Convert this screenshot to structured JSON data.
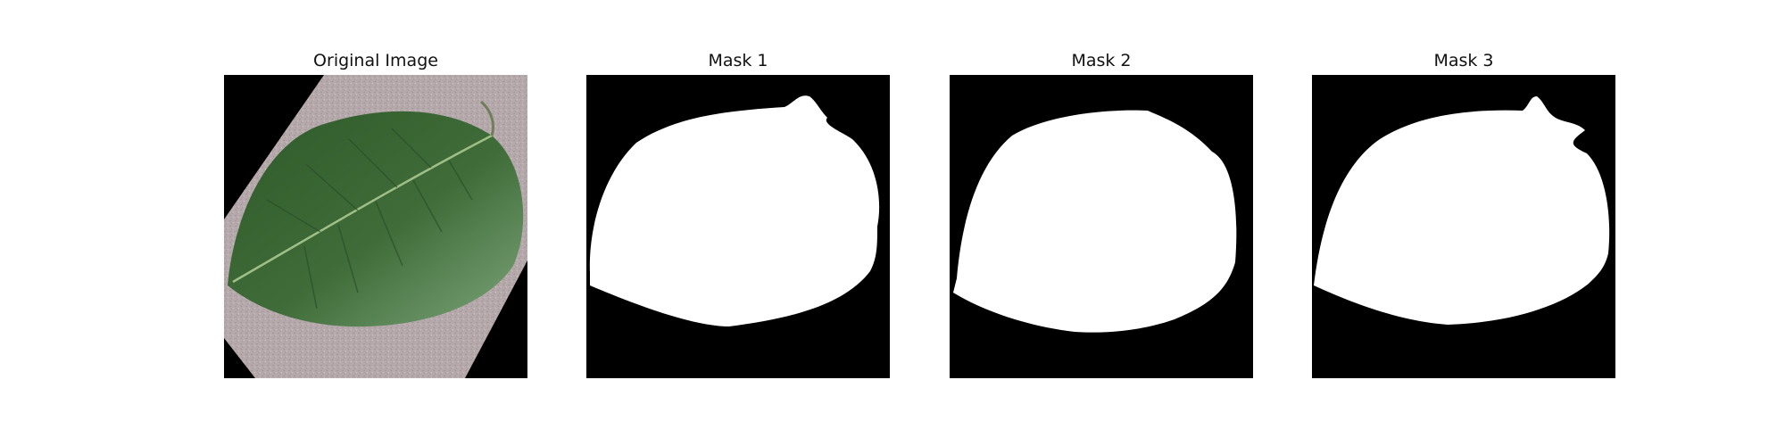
{
  "figure": {
    "panels": [
      {
        "title": "Original Image",
        "kind": "photo",
        "content": "green-leaf-photo"
      },
      {
        "title": "Mask 1",
        "kind": "mask",
        "content": "leaf-segmentation-mask"
      },
      {
        "title": "Mask 2",
        "kind": "mask",
        "content": "leaf-segmentation-mask"
      },
      {
        "title": "Mask 3",
        "kind": "mask",
        "content": "leaf-segmentation-mask"
      }
    ]
  },
  "colors": {
    "background": "#ffffff",
    "mask_foreground": "#ffffff",
    "mask_background": "#000000",
    "leaf_dark": "#2f5a2a",
    "leaf_mid": "#4f7f4a",
    "leaf_light": "#7ea57a",
    "surface": "#b6a9ac"
  }
}
